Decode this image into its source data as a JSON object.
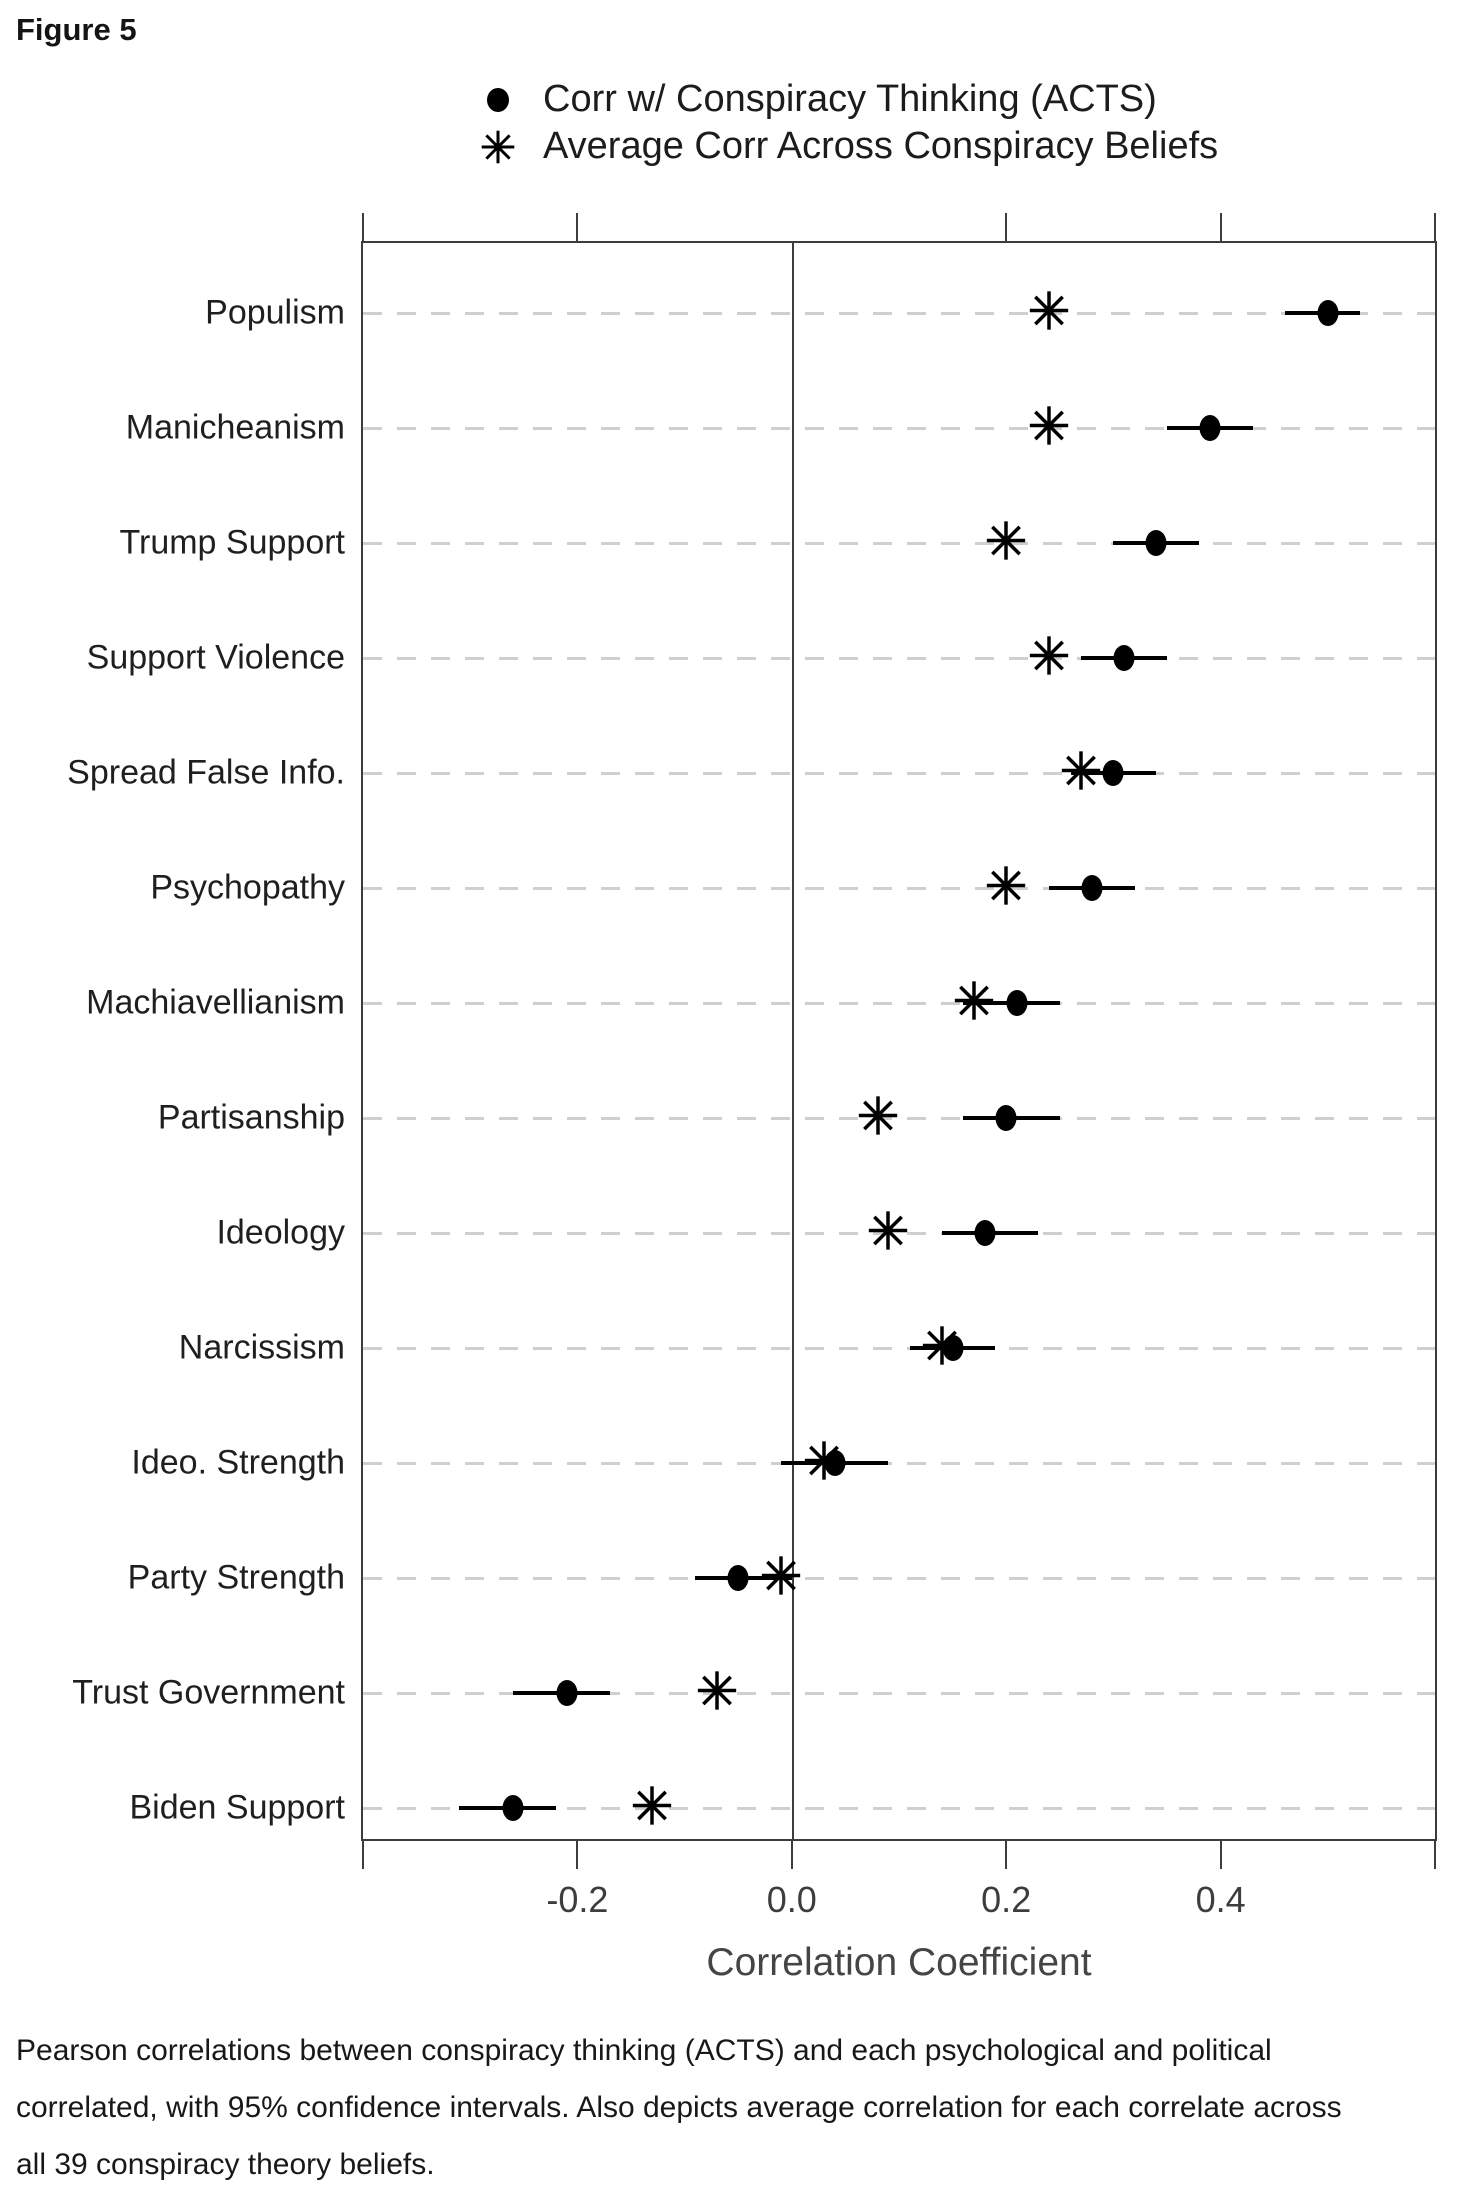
{
  "figure": {
    "title": "Figure 5"
  },
  "legend": {
    "items": [
      {
        "symbol": "dot-icon",
        "label": "Corr w/ Conspiracy Thinking (ACTS)"
      },
      {
        "symbol": "asterisk-icon",
        "label": "Average Corr Across Conspiracy Beliefs"
      }
    ]
  },
  "chart_data": {
    "type": "scatter",
    "subtype": "forest-dot-plot",
    "title": "",
    "xlabel": "Correlation Coefficient",
    "ylabel": "",
    "xlim": [
      -0.4,
      0.6
    ],
    "grid": "dashed horizontal gridline per category row",
    "legend_position": "top",
    "zero_line": 0,
    "xticks": [
      {
        "value": -0.2,
        "label": "-0.2"
      },
      {
        "value": 0.0,
        "label": "0.0"
      },
      {
        "value": 0.2,
        "label": "0.2"
      },
      {
        "value": 0.4,
        "label": "0.4"
      }
    ],
    "top_ticks": [
      -0.4,
      -0.2,
      0.2,
      0.4,
      0.6
    ],
    "bottom_ticks": [
      -0.4,
      -0.2,
      0.0,
      0.2,
      0.4,
      0.6
    ],
    "series": [
      {
        "name": "Corr w/ Conspiracy Thinking (ACTS)",
        "marker": "filled-circle-with-95ci"
      },
      {
        "name": "Average Corr Across Conspiracy Beliefs",
        "marker": "eight-spoke-asterisk"
      }
    ],
    "rows": [
      {
        "label": "Populism",
        "corr_acts": 0.5,
        "ci_low": 0.46,
        "ci_high": 0.53,
        "avg_corr": 0.24
      },
      {
        "label": "Manicheanism",
        "corr_acts": 0.39,
        "ci_low": 0.35,
        "ci_high": 0.43,
        "avg_corr": 0.24
      },
      {
        "label": "Trump Support",
        "corr_acts": 0.34,
        "ci_low": 0.3,
        "ci_high": 0.38,
        "avg_corr": 0.2
      },
      {
        "label": "Support Violence",
        "corr_acts": 0.31,
        "ci_low": 0.27,
        "ci_high": 0.35,
        "avg_corr": 0.24
      },
      {
        "label": "Spread False Info.",
        "corr_acts": 0.3,
        "ci_low": 0.26,
        "ci_high": 0.34,
        "avg_corr": 0.27
      },
      {
        "label": "Psychopathy",
        "corr_acts": 0.28,
        "ci_low": 0.24,
        "ci_high": 0.32,
        "avg_corr": 0.2
      },
      {
        "label": "Machiavellianism",
        "corr_acts": 0.21,
        "ci_low": 0.16,
        "ci_high": 0.25,
        "avg_corr": 0.17
      },
      {
        "label": "Partisanship",
        "corr_acts": 0.2,
        "ci_low": 0.16,
        "ci_high": 0.25,
        "avg_corr": 0.08
      },
      {
        "label": "Ideology",
        "corr_acts": 0.18,
        "ci_low": 0.14,
        "ci_high": 0.23,
        "avg_corr": 0.09
      },
      {
        "label": "Narcissism",
        "corr_acts": 0.15,
        "ci_low": 0.11,
        "ci_high": 0.19,
        "avg_corr": 0.14
      },
      {
        "label": "Ideo. Strength",
        "corr_acts": 0.04,
        "ci_low": -0.01,
        "ci_high": 0.09,
        "avg_corr": 0.03
      },
      {
        "label": "Party Strength",
        "corr_acts": -0.05,
        "ci_low": -0.09,
        "ci_high": 0.0,
        "avg_corr": -0.01
      },
      {
        "label": "Trust Government",
        "corr_acts": -0.21,
        "ci_low": -0.26,
        "ci_high": -0.17,
        "avg_corr": -0.07
      },
      {
        "label": "Biden Support",
        "corr_acts": -0.26,
        "ci_low": -0.31,
        "ci_high": -0.22,
        "avg_corr": -0.13
      }
    ]
  },
  "caption": {
    "lines": [
      "Pearson correlations between conspiracy thinking (ACTS) and each psychological and political",
      "correlated, with 95% confidence intervals. Also depicts average correlation for each correlate across",
      "all 39 conspiracy theory beliefs."
    ]
  }
}
